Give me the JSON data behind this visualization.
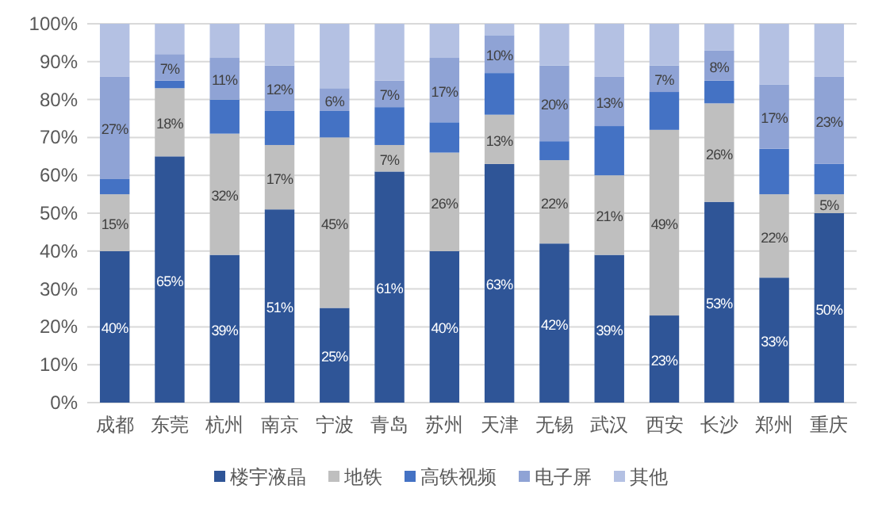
{
  "chart_data": {
    "type": "bar",
    "stacked": true,
    "categories": [
      "成都",
      "东莞",
      "杭州",
      "南京",
      "宁波",
      "青岛",
      "苏州",
      "天津",
      "无锡",
      "武汉",
      "西安",
      "长沙",
      "郑州",
      "重庆"
    ],
    "series": [
      {
        "name": "楼宇液晶",
        "color": "#2f5597",
        "values": [
          40,
          65,
          39,
          51,
          25,
          61,
          40,
          63,
          42,
          39,
          23,
          53,
          33,
          50
        ],
        "value_labels": [
          "40%",
          "65%",
          "39%",
          "51%",
          "25%",
          "61%",
          "40%",
          "63%",
          "42%",
          "39%",
          "23%",
          "53%",
          "33%",
          "50%"
        ]
      },
      {
        "name": "地铁",
        "color": "#bfbfbf",
        "values": [
          15,
          18,
          32,
          17,
          45,
          7,
          26,
          13,
          22,
          21,
          49,
          26,
          22,
          5
        ],
        "value_labels": [
          "15%",
          "18%",
          "32%",
          "17%",
          "45%",
          "7%",
          "26%",
          "13%",
          "22%",
          "21%",
          "49%",
          "26%",
          "22%",
          "5%"
        ]
      },
      {
        "name": "高铁视频",
        "color": "#4472c4",
        "values": [
          4,
          2,
          9,
          9,
          7,
          10,
          8,
          11,
          5,
          13,
          10,
          6,
          12,
          8
        ]
      },
      {
        "name": "电子屏",
        "color": "#8fa3d5",
        "values": [
          27,
          7,
          11,
          12,
          6,
          7,
          17,
          10,
          20,
          13,
          7,
          8,
          17,
          23
        ],
        "value_labels": [
          "27%",
          "7%",
          "11%",
          "12%",
          "6%",
          "7%",
          "17%",
          "10%",
          "20%",
          "13%",
          "7%",
          "8%",
          "17%",
          "23%"
        ]
      },
      {
        "name": "其他",
        "color": "#b4c1e3",
        "values": [
          14,
          8,
          9,
          11,
          17,
          15,
          9,
          3,
          11,
          14,
          11,
          7,
          16,
          14
        ]
      }
    ],
    "ylim": [
      0,
      100
    ],
    "yticks": [
      {
        "value": 0,
        "label": "0%"
      },
      {
        "value": 10,
        "label": "10%"
      },
      {
        "value": 20,
        "label": "20%"
      },
      {
        "value": 30,
        "label": "30%"
      },
      {
        "value": 40,
        "label": "40%"
      },
      {
        "value": 50,
        "label": "50%"
      },
      {
        "value": 60,
        "label": "60%"
      },
      {
        "value": 70,
        "label": "70%"
      },
      {
        "value": 80,
        "label": "80%"
      },
      {
        "value": 90,
        "label": "90%"
      },
      {
        "value": 100,
        "label": "100%"
      }
    ],
    "grid": "y",
    "legend": "bottom"
  }
}
